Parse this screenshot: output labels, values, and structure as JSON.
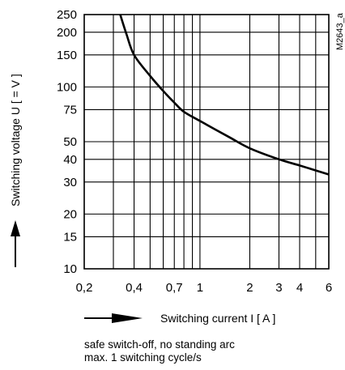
{
  "chart_data": {
    "type": "line",
    "xscale": "log",
    "yscale": "log",
    "xlim": [
      0.2,
      6
    ],
    "ylim": [
      10,
      250
    ],
    "grid": true,
    "x_ticks": [
      0.2,
      0.4,
      0.7,
      1,
      2,
      3,
      4,
      6
    ],
    "x_tick_labels": [
      "0,2",
      "0,4",
      "0,7",
      "1",
      "2",
      "3",
      "4",
      "6"
    ],
    "y_ticks": [
      10,
      15,
      20,
      30,
      40,
      50,
      75,
      100,
      150,
      200,
      250
    ],
    "y_tick_labels": [
      "10",
      "15",
      "20",
      "30",
      "40",
      "50",
      "75",
      "100",
      "150",
      "200",
      "250"
    ],
    "x_grid": [
      0.2,
      0.3,
      0.4,
      0.5,
      0.6,
      0.7,
      0.8,
      0.9,
      1,
      2,
      3,
      4,
      5,
      6
    ],
    "y_grid": [
      10,
      15,
      20,
      30,
      40,
      50,
      75,
      100,
      150,
      200,
      250
    ],
    "xlabel": "Switching current  I   [ A ]",
    "ylabel": "Switching voltage  U   [ = V ]",
    "series": [
      {
        "x": [
          0.33,
          0.36,
          0.4,
          0.5,
          0.6,
          0.7,
          0.8,
          1,
          1.5,
          2,
          3,
          4,
          6
        ],
        "y": [
          250,
          195,
          150,
          115,
          95,
          82,
          73,
          65,
          53,
          46,
          40,
          37,
          33
        ]
      }
    ],
    "reference": "M2643_a"
  },
  "notes": [
    "safe switch-off, no standing arc",
    "max. 1 switching cycle/s"
  ]
}
